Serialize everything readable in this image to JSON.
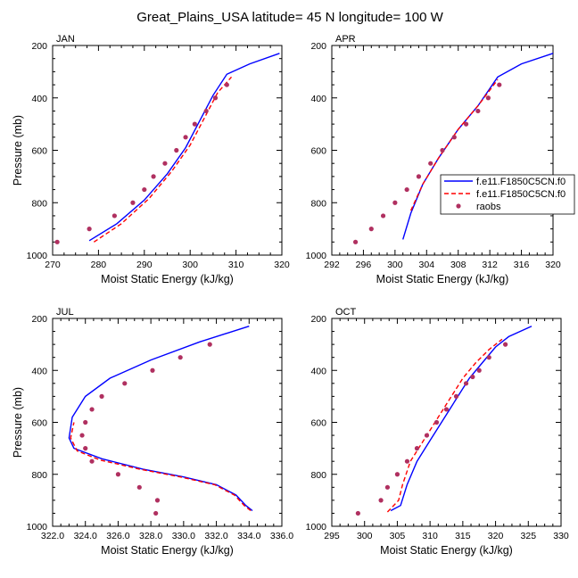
{
  "title": "Great_Plains_USA  latitude= 45 N longitude= 100 W",
  "colors": {
    "model1": "#0000ff",
    "model2": "#ff0000",
    "raobs": "#b03060"
  },
  "legend": {
    "entries": [
      "f.e11.F1850C5CN.f0",
      "f.e11.F1850C5CN.f0",
      "raobs"
    ]
  },
  "chart_data": [
    {
      "type": "line",
      "panel": "JAN",
      "xlabel": "Moist Static Energy (kJ/kg)",
      "ylabel": "Pressure (mb)",
      "xlim": [
        270,
        320
      ],
      "ylim": [
        1000,
        200
      ],
      "xticks": [
        270,
        280,
        290,
        300,
        310,
        320
      ],
      "xtick_labels": [
        "270",
        "280",
        "290",
        "300",
        "310",
        "320"
      ],
      "yticks": [
        200,
        400,
        600,
        800,
        1000
      ],
      "ytick_labels": [
        "200",
        "400",
        "600",
        "800",
        "1000"
      ],
      "series": [
        {
          "name": "f.e11.F1850C5CN.f0",
          "style": "solid",
          "x": [
            278,
            284,
            290,
            295,
            299,
            302,
            305,
            308,
            313,
            319.5
          ],
          "y": [
            945,
            880,
            790,
            690,
            590,
            490,
            390,
            310,
            270,
            230
          ]
        },
        {
          "name": "f.e11.F1850C5CN.f0",
          "style": "dashed",
          "x": [
            279,
            285,
            291,
            296,
            300,
            303,
            306,
            309
          ],
          "y": [
            950,
            880,
            785,
            680,
            580,
            480,
            380,
            320
          ]
        },
        {
          "name": "raobs",
          "style": "markers",
          "x": [
            271,
            278,
            283.5,
            287.5,
            290,
            292,
            294.5,
            297,
            299,
            301,
            303.5,
            305.5,
            308
          ],
          "y": [
            950,
            900,
            850,
            800,
            750,
            700,
            650,
            600,
            550,
            500,
            450,
            400,
            350
          ]
        }
      ]
    },
    {
      "type": "line",
      "panel": "APR",
      "xlabel": "Moist Static Energy (kJ/kg)",
      "ylabel": "",
      "xlim": [
        292,
        320
      ],
      "ylim": [
        1000,
        200
      ],
      "xticks": [
        292,
        296,
        300,
        304,
        308,
        312,
        316,
        320
      ],
      "xtick_labels": [
        "292",
        "296",
        "300",
        "304",
        "308",
        "312",
        "316",
        "320"
      ],
      "yticks": [
        200,
        400,
        600,
        800,
        1000
      ],
      "ytick_labels": [
        "200",
        "400",
        "600",
        "800",
        "1000"
      ],
      "series": [
        {
          "name": "f.e11.F1850C5CN.f0",
          "style": "solid",
          "x": [
            301,
            302,
            303.5,
            305.5,
            308,
            310.5,
            313,
            316,
            320
          ],
          "y": [
            940,
            840,
            730,
            630,
            520,
            430,
            320,
            270,
            230
          ]
        },
        {
          "name": "f.e11.F1850C5CN.f0",
          "style": "dashed",
          "x": [
            302,
            303.5,
            305.5,
            308,
            310.5,
            313
          ],
          "y": [
            830,
            730,
            630,
            520,
            430,
            330
          ]
        },
        {
          "name": "raobs",
          "style": "markers",
          "x": [
            295,
            297,
            298.5,
            300,
            301.5,
            303,
            304.5,
            306,
            307.5,
            309,
            310.5,
            311.8,
            313.2
          ],
          "y": [
            950,
            900,
            850,
            800,
            750,
            700,
            650,
            600,
            550,
            500,
            450,
            400,
            350
          ]
        }
      ]
    },
    {
      "type": "line",
      "panel": "JUL",
      "xlabel": "Moist Static Energy (kJ/kg)",
      "ylabel": "Pressure (mb)",
      "xlim": [
        322,
        336
      ],
      "ylim": [
        1000,
        200
      ],
      "xticks": [
        322,
        324,
        326,
        328,
        330,
        332,
        334,
        336
      ],
      "xtick_labels": [
        "322.0",
        "324.0",
        "326.0",
        "328.0",
        "330.0",
        "332.0",
        "334.0",
        "336.0"
      ],
      "yticks": [
        200,
        400,
        600,
        800,
        1000
      ],
      "ytick_labels": [
        "200",
        "400",
        "600",
        "800",
        "1000"
      ],
      "series": [
        {
          "name": "f.e11.F1850C5CN.f0",
          "style": "solid",
          "x": [
            334.2,
            333.8,
            333.2,
            332,
            330,
            327.5,
            325,
            323.3,
            323,
            323.2,
            324,
            325.5,
            328,
            331,
            334
          ],
          "y": [
            940,
            920,
            880,
            840,
            810,
            780,
            740,
            700,
            660,
            580,
            500,
            430,
            360,
            290,
            230
          ]
        },
        {
          "name": "f.e11.F1850C5CN.f0",
          "style": "dashed",
          "x": [
            334.1,
            333.7,
            333.1,
            331.9,
            329.8,
            327.3,
            324.9,
            323.5,
            323.1,
            323.3
          ],
          "y": [
            940,
            920,
            880,
            840,
            810,
            780,
            745,
            710,
            660,
            600
          ]
        },
        {
          "name": "raobs",
          "style": "markers",
          "x": [
            328.3,
            328.4,
            327.3,
            326,
            324.4,
            324,
            323.8,
            324,
            324.4,
            325,
            326.4,
            328.1,
            329.8,
            331.6
          ],
          "y": [
            950,
            900,
            850,
            800,
            750,
            700,
            650,
            600,
            550,
            500,
            450,
            400,
            350,
            300
          ]
        }
      ]
    },
    {
      "type": "line",
      "panel": "OCT",
      "xlabel": "Moist Static Energy (kJ/kg)",
      "ylabel": "",
      "xlim": [
        295,
        330
      ],
      "ylim": [
        1000,
        200
      ],
      "xticks": [
        295,
        300,
        305,
        310,
        315,
        320,
        325,
        330
      ],
      "xtick_labels": [
        "295",
        "300",
        "305",
        "310",
        "315",
        "320",
        "325",
        "330"
      ],
      "yticks": [
        200,
        400,
        600,
        800,
        1000
      ],
      "ytick_labels": [
        "200",
        "400",
        "600",
        "800",
        "1000"
      ],
      "series": [
        {
          "name": "f.e11.F1850C5CN.f0",
          "style": "solid",
          "x": [
            304,
            305.5,
            306.5,
            308,
            310,
            312,
            314,
            316,
            318,
            320,
            322,
            325.5
          ],
          "y": [
            940,
            920,
            840,
            750,
            670,
            590,
            510,
            430,
            370,
            310,
            270,
            230
          ]
        },
        {
          "name": "f.e11.F1850C5CN.f0",
          "style": "dashed",
          "x": [
            303.5,
            305.2,
            305.8,
            307,
            309,
            311,
            313,
            315,
            317,
            319,
            321
          ],
          "y": [
            945,
            900,
            840,
            750,
            670,
            590,
            510,
            430,
            370,
            320,
            280
          ]
        },
        {
          "name": "raobs",
          "style": "markers",
          "x": [
            299,
            302.5,
            303.5,
            305,
            306.5,
            308,
            309.5,
            311,
            312.5,
            314,
            315.5,
            316.5,
            317.5,
            319,
            321.5
          ],
          "y": [
            950,
            900,
            850,
            800,
            750,
            700,
            650,
            600,
            550,
            500,
            450,
            425,
            400,
            350,
            300
          ]
        }
      ]
    }
  ]
}
